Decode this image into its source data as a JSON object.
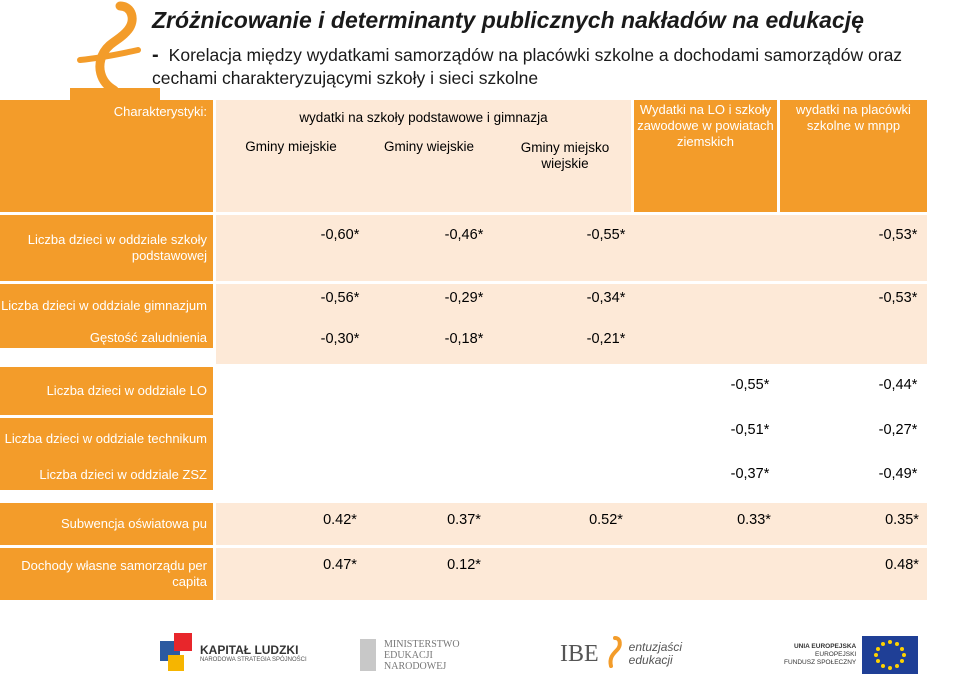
{
  "slide": {
    "title": "Zróżnicowanie i determinanty publicznych nakładów na edukację",
    "subtitle_dash": "-",
    "subtitle": "Korelacja między wydatkami samorządów na placówki szkolne a dochodami samorządów oraz cechami charakteryzującymi szkoły i sieci szkolne"
  },
  "table": {
    "corner_label": "Charakterystyki:",
    "group_header": "wydatki na szkoły podstawowe i gimnazja",
    "col_headers": [
      "Gminy miejskie",
      "Gminy wiejskie",
      "Gminy miejsko wiejskie",
      "Wydatki na LO i szkoły zawodowe w powiatach ziemskich",
      "wydatki na placówki szkolne w mnpp"
    ],
    "rows": [
      {
        "label": "Liczba dzieci w oddziale szkoły podstawowej",
        "values": [
          "-0,60*",
          "-0,46*",
          "-0,55*",
          "",
          "-0,53*"
        ]
      },
      {
        "label": "Liczba dzieci w oddziale gimnazjum",
        "values": [
          "-0,56*",
          "-0,29*",
          "-0,34*",
          "",
          "-0,53*"
        ]
      },
      {
        "label": "Gęstość zaludnienia",
        "values": [
          "-0,30*",
          "-0,18*",
          "-0,21*",
          "",
          ""
        ]
      },
      {
        "label": "Liczba dzieci w oddziale LO",
        "values": [
          "",
          "",
          "",
          "-0,55*",
          "-0,44*"
        ]
      },
      {
        "label": "Liczba dzieci w oddziale technikum",
        "values": [
          "",
          "",
          "",
          "-0,51*",
          "-0,27*"
        ]
      },
      {
        "label": "Liczba dzieci w oddziale ZSZ",
        "values": [
          "",
          "",
          "",
          "-0,37*",
          "-0,49*"
        ]
      },
      {
        "label": "Subwencja oświatowa pu",
        "values": [
          "0.42*",
          "0.37*",
          "0.52*",
          "0.33*",
          "0.35*"
        ]
      },
      {
        "label": "Dochody własne samorządu per capita",
        "values": [
          "0.47*",
          "0.12*",
          "",
          "",
          "0.48*"
        ]
      }
    ]
  },
  "footer_logos": {
    "kapital_title": "KAPITAŁ LUDZKI",
    "kapital_sub": "NARODOWA STRATEGIA SPÓJNOŚCI",
    "men_line1": "MINISTERSTWO",
    "men_line2": "EDUKACJI",
    "men_line3": "NARODOWEJ",
    "ibe": "IBE",
    "ibe_tag1": "entuzjaści",
    "ibe_tag2": "edukacji",
    "eu_line1": "UNIA EUROPEJSKA",
    "eu_line2": "EUROPEJSKI",
    "eu_line3": "FUNDUSZ SPOŁECZNY"
  },
  "colors": {
    "orange": "#f39c2a",
    "light_peach": "#fde9d7",
    "eu_blue": "#1f3f96"
  }
}
